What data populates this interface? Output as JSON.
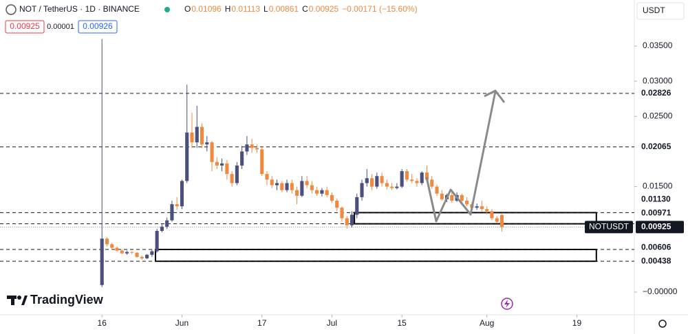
{
  "chart_data": {
    "type": "candlestick",
    "header": {
      "symbol": "NOT / TetherUS · 1D · BINANCE",
      "ohlc_legend": [
        {
          "label": "O",
          "value": 0.01096
        },
        {
          "label": "H",
          "value": 0.01113
        },
        {
          "label": "L",
          "value": 0.00861
        },
        {
          "label": "C",
          "value": 0.00925
        }
      ],
      "change": "−0.00171 (−15.60%)",
      "bid": 0.00925,
      "spread": 1e-05,
      "ask": 0.00926
    },
    "currency": "USDT",
    "watermark": "TradingView",
    "up_color": "#4a4f7e",
    "down_color": "#f0883e",
    "x": [
      0,
      1,
      2,
      3,
      4,
      5,
      6,
      7,
      8,
      9,
      10,
      11,
      12,
      13,
      14,
      15,
      16,
      17,
      18,
      19,
      20,
      21,
      22,
      23,
      24,
      25,
      26,
      27,
      28,
      29,
      30,
      31,
      32,
      33,
      34,
      35,
      36,
      37,
      38,
      39,
      40,
      41,
      42,
      43,
      44,
      45,
      46,
      47,
      48,
      49,
      50,
      51,
      52,
      53,
      54,
      55,
      56,
      57,
      58,
      59,
      60,
      61,
      62,
      63,
      64,
      65,
      66,
      67,
      68,
      69,
      70,
      71,
      72,
      73,
      74,
      75,
      76,
      77,
      78,
      79,
      80
    ],
    "open": [
      0.001,
      0.0076,
      0.0068,
      0.0063,
      0.0059,
      0.0055,
      0.0057,
      0.0056,
      0.005,
      0.0048,
      0.0053,
      0.0058,
      0.0087,
      0.0093,
      0.0102,
      0.0125,
      0.0122,
      0.0158,
      0.0227,
      0.0213,
      0.0235,
      0.021,
      0.0213,
      0.0185,
      0.018,
      0.0183,
      0.0168,
      0.0155,
      0.018,
      0.02,
      0.021,
      0.0205,
      0.0203,
      0.0168,
      0.016,
      0.0152,
      0.0155,
      0.0145,
      0.0155,
      0.0145,
      0.0137,
      0.0158,
      0.0152,
      0.0145,
      0.014,
      0.0145,
      0.0138,
      0.013,
      0.012,
      0.0105,
      0.0095,
      0.011,
      0.0135,
      0.0155,
      0.0162,
      0.015,
      0.0165,
      0.0155,
      0.015,
      0.0148,
      0.015,
      0.0172,
      0.016,
      0.0158,
      0.0155,
      0.017,
      0.016,
      0.015,
      0.014,
      0.0132,
      0.0138,
      0.013,
      0.0138,
      0.013,
      0.0125,
      0.012,
      0.0122,
      0.0118,
      0.0115,
      0.0105,
      0.01096
    ],
    "high": [
      0.036,
      0.0078,
      0.007,
      0.0065,
      0.0061,
      0.0059,
      0.0058,
      0.0057,
      0.0052,
      0.0054,
      0.006,
      0.009,
      0.0097,
      0.0106,
      0.013,
      0.0135,
      0.016,
      0.0295,
      0.0255,
      0.0265,
      0.024,
      0.0222,
      0.0215,
      0.0192,
      0.019,
      0.0188,
      0.0172,
      0.0185,
      0.0208,
      0.0222,
      0.0218,
      0.021,
      0.0208,
      0.0172,
      0.0165,
      0.016,
      0.0158,
      0.016,
      0.016,
      0.015,
      0.0165,
      0.0165,
      0.0158,
      0.015,
      0.0148,
      0.015,
      0.0142,
      0.0133,
      0.0122,
      0.0108,
      0.0115,
      0.014,
      0.016,
      0.0175,
      0.0168,
      0.017,
      0.017,
      0.016,
      0.0155,
      0.0155,
      0.0175,
      0.0175,
      0.0168,
      0.0162,
      0.0172,
      0.018,
      0.0165,
      0.0153,
      0.0145,
      0.014,
      0.0142,
      0.0142,
      0.014,
      0.0135,
      0.0128,
      0.0126,
      0.013,
      0.0122,
      0.0118,
      0.0108,
      0.01113
    ],
    "low": [
      0.0007,
      0.0065,
      0.006,
      0.0057,
      0.0054,
      0.0053,
      0.0054,
      0.0049,
      0.0046,
      0.0047,
      0.005,
      0.0056,
      0.0085,
      0.009,
      0.01,
      0.0117,
      0.0118,
      0.0155,
      0.0205,
      0.0205,
      0.0205,
      0.02,
      0.0172,
      0.0175,
      0.0172,
      0.016,
      0.015,
      0.0152,
      0.0175,
      0.0195,
      0.0198,
      0.0198,
      0.0165,
      0.0152,
      0.0148,
      0.0145,
      0.0142,
      0.0142,
      0.014,
      0.0125,
      0.0135,
      0.0148,
      0.014,
      0.0137,
      0.0136,
      0.0135,
      0.0127,
      0.0115,
      0.01,
      0.009,
      0.0092,
      0.0105,
      0.013,
      0.015,
      0.0145,
      0.0147,
      0.015,
      0.0146,
      0.0145,
      0.0146,
      0.0148,
      0.0157,
      0.0155,
      0.015,
      0.0152,
      0.0157,
      0.0147,
      0.0137,
      0.013,
      0.0128,
      0.0127,
      0.0128,
      0.0127,
      0.0122,
      0.0117,
      0.0117,
      0.0115,
      0.011,
      0.0102,
      0.0098,
      0.00861
    ],
    "close": [
      0.0076,
      0.0068,
      0.0063,
      0.0059,
      0.0055,
      0.0057,
      0.0056,
      0.005,
      0.0048,
      0.0053,
      0.0058,
      0.0087,
      0.0093,
      0.0102,
      0.0125,
      0.0122,
      0.0158,
      0.0227,
      0.0213,
      0.0235,
      0.021,
      0.0213,
      0.0185,
      0.018,
      0.0183,
      0.0168,
      0.0155,
      0.018,
      0.02,
      0.021,
      0.0205,
      0.0203,
      0.0168,
      0.016,
      0.0152,
      0.0155,
      0.0145,
      0.0155,
      0.0145,
      0.0137,
      0.0158,
      0.0152,
      0.0145,
      0.014,
      0.0145,
      0.0138,
      0.013,
      0.012,
      0.0105,
      0.0095,
      0.011,
      0.0135,
      0.0155,
      0.0162,
      0.015,
      0.0165,
      0.0155,
      0.015,
      0.0148,
      0.015,
      0.0172,
      0.016,
      0.0158,
      0.0155,
      0.017,
      0.016,
      0.015,
      0.014,
      0.0132,
      0.0138,
      0.013,
      0.0138,
      0.013,
      0.0125,
      0.012,
      0.0122,
      0.0118,
      0.0115,
      0.0105,
      0.01,
      0.00925
    ],
    "xlim": [
      -20.4,
      106.5
    ],
    "xticks": [
      {
        "value": 0,
        "label": "16"
      },
      {
        "value": 16,
        "label": "Jun"
      },
      {
        "value": 32,
        "label": "17"
      },
      {
        "value": 46,
        "label": "Jul"
      },
      {
        "value": 60,
        "label": "15"
      },
      {
        "value": 77,
        "label": "Aug"
      },
      {
        "value": 95,
        "label": "19"
      }
    ],
    "ylim": [
      -0.00323,
      0.04155
    ],
    "yticks": [
      {
        "value": 0,
        "label": "−0.00000"
      },
      {
        "value": 0.015,
        "label": "0.01500"
      },
      {
        "value": 0.025,
        "label": "0.02500"
      },
      {
        "value": 0.03,
        "label": "0.03000"
      },
      {
        "value": 0.035,
        "label": "0.03500"
      }
    ],
    "levels": [
      0.02826,
      0.02065,
      {
        "value": 0.0113,
        "label": "0.01130"
      },
      0.00971,
      0.00606,
      0.00438
    ],
    "price_line": {
      "name": "NOTUSDT",
      "value": 0.00925
    },
    "zones": [
      {
        "low": 0.00971,
        "high": 0.0113,
        "start": 50.5,
        "end": 98.9
      },
      {
        "low": 0.00438,
        "high": 0.00606,
        "start": 10.7,
        "end": 98.9
      }
    ]
  }
}
